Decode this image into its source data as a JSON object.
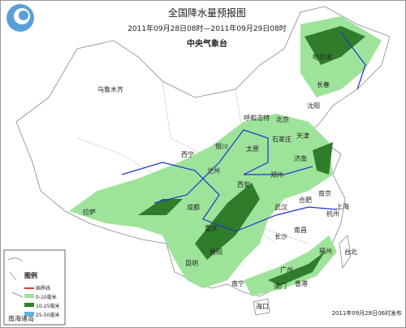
{
  "header": {
    "title": "全国降水量预报图",
    "period": "2011年09月28日08时—2011年09月29日08时",
    "issuer": "中央气象台"
  },
  "cities": [
    "乌鲁木齐",
    "哈尔滨",
    "长春",
    "沈阳",
    "呼和浩特",
    "北京",
    "天津",
    "银川",
    "石家庄",
    "太原",
    "济南",
    "西宁",
    "兰州",
    "郑州",
    "西安",
    "合肥",
    "南京",
    "上海",
    "拉萨",
    "成都",
    "武汉",
    "杭州",
    "重庆",
    "长沙",
    "南昌",
    "贵阳",
    "福州",
    "昆明",
    "台北",
    "南宁",
    "广州",
    "澳门",
    "香港",
    "海口"
  ],
  "legend": {
    "title": "图例",
    "items": [
      "国界线",
      "0-10毫米",
      "10-25毫米",
      "25-50毫米"
    ]
  },
  "inset": "南海诸岛",
  "footer": "2011年09月28日06时发布"
}
